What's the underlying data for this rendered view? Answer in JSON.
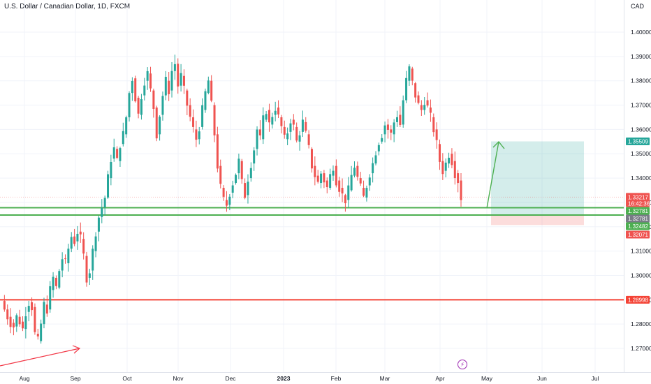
{
  "header": {
    "symbol_title": "U.S. Dollar / Canadian Dollar, 1D, FXCM",
    "currency": "CAD"
  },
  "colors": {
    "up": "#26a69a",
    "down": "#ef5350",
    "grid": "#f0f3fa",
    "support_line": "#4caf50",
    "resistance_line": "#f44336",
    "target_zone": "#26a69a",
    "stop_zone": "#ef5350",
    "arrow_green": "#4caf50",
    "arrow_red": "#f23645"
  },
  "price_labels": {
    "target": "1.35509",
    "last_price": "1.33217",
    "countdown": "16:42:36",
    "line_upper": "1.32781",
    "line_upper_dup": "1.32781",
    "entry": "1.32482",
    "stop": "1.32071",
    "lower_line": "1.28998"
  },
  "chart_data": {
    "type": "candlestick",
    "title": "U.S. Dollar / Canadian Dollar, 1D, FXCM",
    "y_axis": {
      "unit": "CAD",
      "range": [
        1.2625,
        1.4125
      ],
      "ticks": [
        "1.27000",
        "1.28000",
        "1.29000",
        "1.30000",
        "1.31000",
        "1.32000",
        "1.33000",
        "1.34000",
        "1.35000",
        "1.36000",
        "1.37000",
        "1.38000",
        "1.39000",
        "1.40000"
      ]
    },
    "x_axis": {
      "ticks": [
        "Aug",
        "Sep",
        "Oct",
        "Nov",
        "Dec",
        "2023",
        "Feb",
        "Mar",
        "Apr",
        "May",
        "Jun",
        "Jul"
      ],
      "bold_ticks": [
        "2023"
      ]
    },
    "grid": true,
    "horizontal_lines": [
      {
        "price": 1.32781,
        "color": "green"
      },
      {
        "price": 1.32482,
        "color": "green"
      },
      {
        "price": 1.28998,
        "color": "red"
      }
    ],
    "position_tool": {
      "entry": 1.32482,
      "target": 1.35509,
      "stop": 1.32071
    },
    "path": [
      1.2895,
      1.286,
      1.283,
      1.2805,
      1.279,
      1.283,
      1.281,
      1.278,
      1.285,
      1.289,
      1.287,
      1.276,
      1.273,
      1.28,
      1.288,
      1.286,
      1.294,
      1.299,
      1.295,
      1.302,
      1.307,
      1.305,
      1.311,
      1.316,
      1.314,
      1.318,
      1.315,
      1.308,
      1.299,
      1.302,
      1.31,
      1.318,
      1.324,
      1.328,
      1.332,
      1.34,
      1.348,
      1.352,
      1.347,
      1.354,
      1.358,
      1.365,
      1.375,
      1.381,
      1.373,
      1.366,
      1.374,
      1.38,
      1.383,
      1.376,
      1.369,
      1.358,
      1.366,
      1.374,
      1.38,
      1.376,
      1.384,
      1.387,
      1.378,
      1.382,
      1.376,
      1.37,
      1.365,
      1.36,
      1.356,
      1.361,
      1.368,
      1.375,
      1.38,
      1.37,
      1.358,
      1.345,
      1.336,
      1.331,
      1.329,
      1.334,
      1.338,
      1.342,
      1.347,
      1.338,
      1.333,
      1.34,
      1.346,
      1.352,
      1.36,
      1.356,
      1.364,
      1.368,
      1.362,
      1.366,
      1.369,
      1.365,
      1.361,
      1.356,
      1.359,
      1.364,
      1.361,
      1.355,
      1.359,
      1.363,
      1.358,
      1.352,
      1.345,
      1.341,
      1.338,
      1.342,
      1.339,
      1.336,
      1.341,
      1.345,
      1.339,
      1.336,
      1.333,
      1.331,
      1.335,
      1.341,
      1.345,
      1.34,
      1.336,
      1.332,
      1.337,
      1.342,
      1.346,
      1.351,
      1.355,
      1.358,
      1.362,
      1.36,
      1.358,
      1.363,
      1.366,
      1.362,
      1.372,
      1.38,
      1.385,
      1.379,
      1.374,
      1.37,
      1.368,
      1.372,
      1.369,
      1.365,
      1.36,
      1.354,
      1.347,
      1.343,
      1.346,
      1.35,
      1.347,
      1.342,
      1.339,
      1.332
    ]
  }
}
